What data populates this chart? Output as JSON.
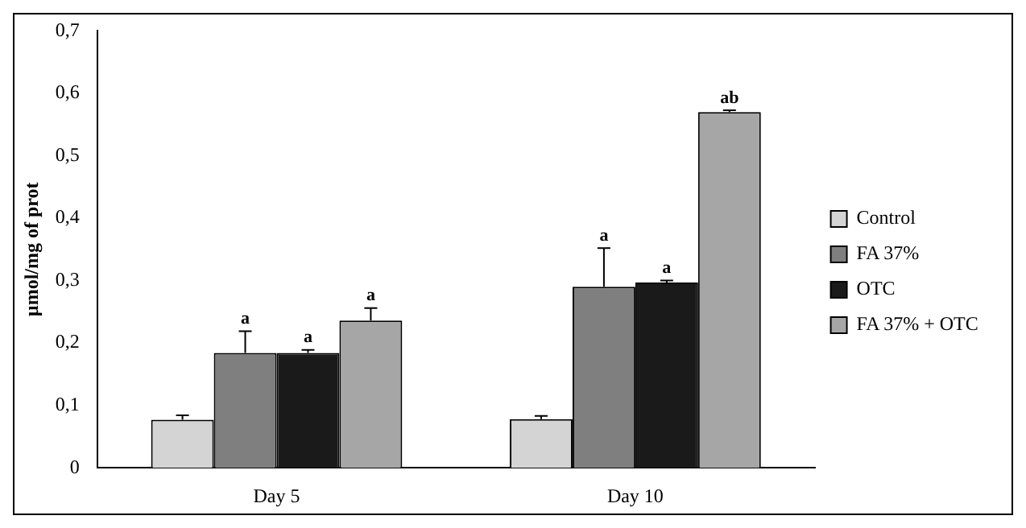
{
  "chart_data": {
    "type": "bar",
    "ylabel": "µmol/mg of prot",
    "categories": [
      "Day 5",
      "Day 10"
    ],
    "series": [
      {
        "name": "Control",
        "color": "#d4d4d4",
        "values": [
          0.077,
          0.078
        ],
        "errors": [
          0.007,
          0.005
        ],
        "value_labels": [
          null,
          null
        ]
      },
      {
        "name": "FA 37%",
        "color": "#7f7f7f",
        "values": [
          0.184,
          0.29
        ],
        "errors": [
          0.035,
          0.062
        ],
        "value_labels": [
          "a",
          "a"
        ]
      },
      {
        "name": "OTC",
        "color": "#1a1a1a",
        "values": [
          0.184,
          0.297
        ],
        "errors": [
          0.005,
          0.003
        ],
        "value_labels": [
          "a",
          "a"
        ]
      },
      {
        "name": "FA 37% + OTC",
        "color": "#a6a6a6",
        "values": [
          0.236,
          0.57
        ],
        "errors": [
          0.02,
          0.003
        ],
        "value_labels": [
          "a",
          "ab"
        ]
      }
    ],
    "ylim": [
      0,
      0.7
    ],
    "yticks": [
      {
        "value": 0,
        "label": "0"
      },
      {
        "value": 0.1,
        "label": "0,1"
      },
      {
        "value": 0.2,
        "label": "0,2"
      },
      {
        "value": 0.3,
        "label": "0,3"
      },
      {
        "value": 0.4,
        "label": "0,4"
      },
      {
        "value": 0.5,
        "label": "0,5"
      },
      {
        "value": 0.6,
        "label": "0,6"
      },
      {
        "value": 0.7,
        "label": "0,7"
      }
    ],
    "grid": false,
    "legend": "right"
  }
}
